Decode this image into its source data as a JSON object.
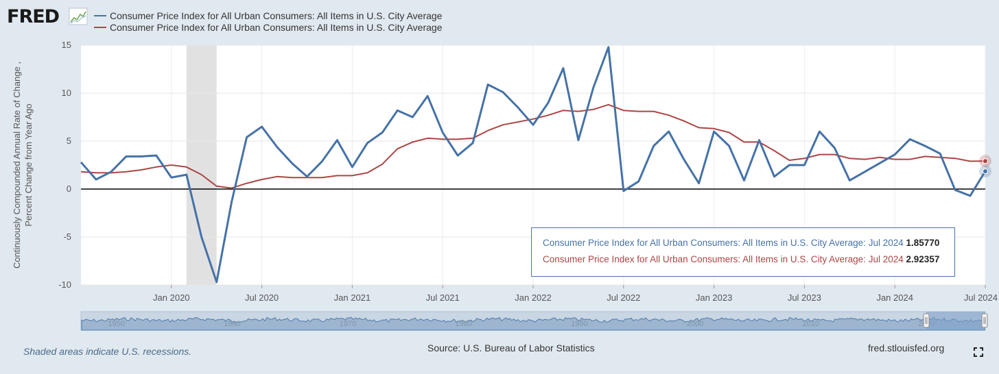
{
  "header": {
    "logo_text": "FRED"
  },
  "legend": [
    {
      "label": "Consumer Price Index for All Urban Consumers: All Items in U.S. City Average",
      "color": "#4572a7"
    },
    {
      "label": "Consumer Price Index for All Urban Consumers: All Items in U.S. City Average",
      "color": "#aa4643"
    }
  ],
  "chart_data": {
    "type": "line",
    "ylabel_line1": "Continuously Compounded Annual Rate of Change ,",
    "ylabel_line2": "Percent Change from Year Ago",
    "ylim": [
      -10,
      15
    ],
    "y_ticks": [
      "15",
      "10",
      "5",
      "0",
      "-5",
      "-10"
    ],
    "y_tick_values": [
      15,
      10,
      5,
      0,
      -5,
      -10
    ],
    "x_range": [
      "2019-07",
      "2024-07"
    ],
    "x_ticks": [
      {
        "label": "Jan 2020",
        "month": 6
      },
      {
        "label": "Jul 2020",
        "month": 12
      },
      {
        "label": "Jan 2021",
        "month": 18
      },
      {
        "label": "Jul 2021",
        "month": 24
      },
      {
        "label": "Jan 2022",
        "month": 30
      },
      {
        "label": "Jul 2022",
        "month": 36
      },
      {
        "label": "Jan 2023",
        "month": 42
      },
      {
        "label": "Jul 2023",
        "month": 48
      },
      {
        "label": "Jan 2024",
        "month": 54
      },
      {
        "label": "Jul 2024",
        "month": 60
      }
    ],
    "recession": {
      "start": "2020-02",
      "end": "2020-04"
    },
    "grid": true,
    "series": [
      {
        "name": "Consumer Price Index for All Urban Consumers: All Items in U.S. City Average",
        "color": "#4572a7",
        "values": [
          2.8,
          1.0,
          1.8,
          3.4,
          3.4,
          3.5,
          1.2,
          1.5,
          -5.0,
          -9.7,
          -1.3,
          5.4,
          6.5,
          4.4,
          2.7,
          1.3,
          2.9,
          5.1,
          2.3,
          4.8,
          5.9,
          8.2,
          7.5,
          9.7,
          5.9,
          3.5,
          4.8,
          10.9,
          10.1,
          8.5,
          6.7,
          9.0,
          12.6,
          5.1,
          10.6,
          14.8,
          -0.2,
          0.8,
          4.5,
          6.0,
          3.1,
          0.6,
          6.0,
          4.5,
          0.9,
          5.1,
          1.3,
          2.5,
          2.5,
          6.0,
          4.3,
          0.9,
          1.8,
          2.7,
          3.6,
          5.2,
          4.5,
          3.7,
          -0.1,
          -0.7,
          1.8577
        ]
      },
      {
        "name": "Consumer Price Index for All Urban Consumers: All Items in U.S. City Average",
        "color": "#aa4643",
        "values": [
          1.8,
          1.7,
          1.7,
          1.8,
          2.0,
          2.3,
          2.5,
          2.3,
          1.5,
          0.3,
          0.1,
          0.6,
          1.0,
          1.3,
          1.2,
          1.2,
          1.2,
          1.4,
          1.4,
          1.7,
          2.6,
          4.2,
          4.9,
          5.3,
          5.2,
          5.2,
          5.3,
          6.1,
          6.7,
          7.0,
          7.3,
          7.7,
          8.2,
          8.1,
          8.3,
          8.8,
          8.2,
          8.1,
          8.1,
          7.7,
          7.1,
          6.4,
          6.3,
          5.9,
          4.9,
          4.9,
          4.0,
          3.0,
          3.2,
          3.6,
          3.6,
          3.2,
          3.1,
          3.3,
          3.1,
          3.1,
          3.4,
          3.3,
          3.2,
          2.9,
          2.92357
        ]
      }
    ]
  },
  "navigator": {
    "year_labels": [
      "1950",
      "1960",
      "1970",
      "1980",
      "1990",
      "2000",
      "2010",
      "2020"
    ]
  },
  "tooltip": {
    "rows": [
      {
        "name": "Consumer Price Index for All Urban Consumers: All Items in U.S. City Average:",
        "date": "Jul 2024",
        "value": "1.85770"
      },
      {
        "name": "Consumer Price Index for All Urban Consumers: All Items in U.S. City Average:",
        "date": "Jul 2024",
        "value": "2.92357"
      }
    ]
  },
  "footer": {
    "shaded_note": "Shaded areas indicate U.S. recessions.",
    "source": "Source: U.S. Bureau of Labor Statistics",
    "site": "fred.stlouisfed.org"
  }
}
